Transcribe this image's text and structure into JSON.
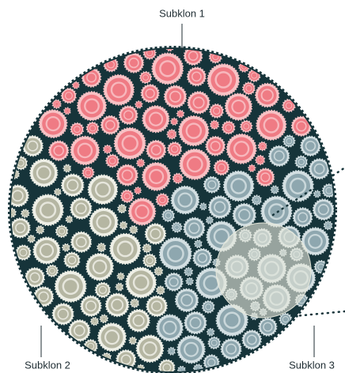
{
  "labels": [
    "Subklon 1",
    "Subklon 2",
    "Subklon 3"
  ]
}
